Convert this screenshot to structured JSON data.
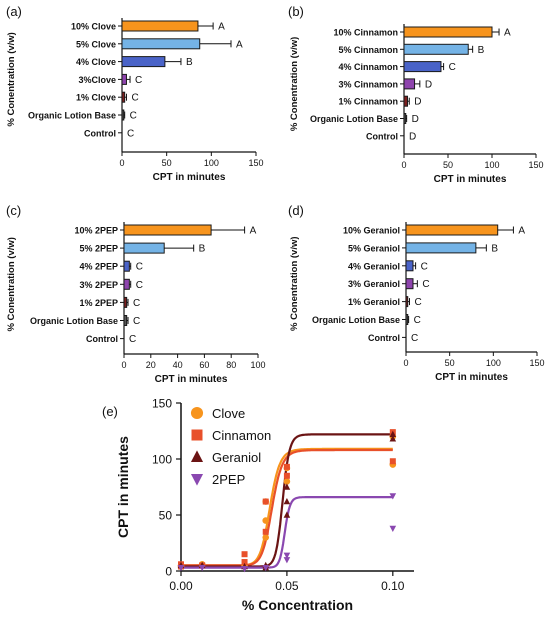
{
  "chart_data": [
    {
      "panel_label": "(a)",
      "type": "bar",
      "orientation": "horizontal",
      "xlabel": "CPT in minutes",
      "ylabel": "% Conentration (v/w)",
      "xlim": [
        0,
        150
      ],
      "xticks": [
        "0",
        "50",
        "100",
        "150"
      ],
      "categories": [
        "10% Clove",
        "5% Clove",
        "4% Clove",
        "3%Clove",
        "1% Clove",
        "Organic Lotion Base",
        "Control"
      ],
      "values": [
        85,
        87,
        48,
        5,
        3,
        2,
        0
      ],
      "errors": [
        17,
        35,
        18,
        4,
        2,
        1,
        0
      ],
      "letters": [
        "A",
        "A",
        "B",
        "C",
        "C",
        "C",
        "C"
      ],
      "colors": [
        "#f7941d",
        "#74b3e6",
        "#4a63c8",
        "#8e44ad",
        "#7a1f1f",
        "#555555",
        "#555555"
      ]
    },
    {
      "panel_label": "(b)",
      "type": "bar",
      "orientation": "horizontal",
      "xlabel": "CPT in minutes",
      "ylabel": "% Conentration (v/w)",
      "xlim": [
        0,
        150
      ],
      "xticks": [
        "0",
        "50",
        "100",
        "150"
      ],
      "categories": [
        "10% Cinnamon",
        "5% Cinnamon",
        "4% Cinnamon",
        "3% Cinnamon",
        "1% Cinnamon",
        "Organic Lotion Base",
        "Control"
      ],
      "values": [
        100,
        73,
        42,
        12,
        4,
        2,
        0
      ],
      "errors": [
        8,
        5,
        3,
        6,
        2,
        1,
        0
      ],
      "letters": [
        "A",
        "B",
        "C",
        "D",
        "D",
        "D",
        "D"
      ],
      "colors": [
        "#f7941d",
        "#74b3e6",
        "#4a63c8",
        "#8e44ad",
        "#7a1f1f",
        "#555555",
        "#555555"
      ]
    },
    {
      "panel_label": "(c)",
      "type": "bar",
      "orientation": "horizontal",
      "xlabel": "CPT in minutes",
      "ylabel": "% Conentration (v/w)",
      "xlim": [
        0,
        100
      ],
      "xticks": [
        "0",
        "20",
        "40",
        "60",
        "80",
        "100"
      ],
      "categories": [
        "10% 2PEP",
        "5% 2PEP",
        "4% 2PEP",
        "3% 2PEP",
        "1% 2PEP",
        "Organic Lotion Base",
        "Control"
      ],
      "values": [
        65,
        30,
        4,
        4,
        2,
        2,
        0
      ],
      "errors": [
        25,
        22,
        1,
        1,
        1,
        1,
        0
      ],
      "letters": [
        "A",
        "B",
        "C",
        "C",
        "C",
        "C",
        "C"
      ],
      "colors": [
        "#f7941d",
        "#74b3e6",
        "#4a63c8",
        "#8e44ad",
        "#7a1f1f",
        "#555555",
        "#555555"
      ]
    },
    {
      "panel_label": "(d)",
      "type": "bar",
      "orientation": "horizontal",
      "xlabel": "CPT in minutes",
      "ylabel": "% Conentration (v/w)",
      "xlim": [
        0,
        150
      ],
      "xticks": [
        "0",
        "50",
        "100",
        "150"
      ],
      "categories": [
        "10% Geraniol",
        "5% Geraniol",
        "4% Geraniol",
        "3% Geraniol",
        "1% Geraniol",
        "Organic Lotion Base",
        "Control"
      ],
      "values": [
        105,
        80,
        8,
        8,
        2,
        2,
        0
      ],
      "errors": [
        18,
        12,
        3,
        5,
        2,
        1,
        0
      ],
      "letters": [
        "A",
        "B",
        "C",
        "C",
        "C",
        "C",
        "C"
      ],
      "colors": [
        "#f7941d",
        "#74b3e6",
        "#4a63c8",
        "#8e44ad",
        "#7a1f1f",
        "#555555",
        "#555555"
      ]
    },
    {
      "panel_label": "(e)",
      "type": "scatter",
      "xlabel": "% Concentration",
      "ylabel": "CPT in minutes",
      "xlim": [
        0,
        0.11
      ],
      "ylim": [
        0,
        150
      ],
      "xticks": [
        "0.00",
        "0.05",
        "0.10"
      ],
      "yticks": [
        "0",
        "50",
        "100",
        "150"
      ],
      "legend_position": "top-left",
      "series": [
        {
          "name": "Clove",
          "color": "#f7941d",
          "marker": "circle",
          "points": [
            [
              0,
              5
            ],
            [
              0,
              4
            ],
            [
              0.01,
              6
            ],
            [
              0.03,
              5
            ],
            [
              0.04,
              30
            ],
            [
              0.04,
              45
            ],
            [
              0.04,
              62
            ],
            [
              0.05,
              80
            ],
            [
              0.05,
              92
            ],
            [
              0.1,
              120
            ],
            [
              0.1,
              95
            ]
          ],
          "fit": {
            "bottom": 5,
            "top": 109,
            "ec50": 0.042,
            "hill": 18
          }
        },
        {
          "name": "Cinnamon",
          "color": "#e8502a",
          "marker": "square",
          "points": [
            [
              0,
              6
            ],
            [
              0,
              4
            ],
            [
              0.01,
              5
            ],
            [
              0.03,
              8
            ],
            [
              0.03,
              15
            ],
            [
              0.04,
              35
            ],
            [
              0.04,
              62
            ],
            [
              0.05,
              85
            ],
            [
              0.05,
              93
            ],
            [
              0.1,
              124
            ],
            [
              0.1,
              98
            ]
          ],
          "fit": {
            "bottom": 5,
            "top": 108,
            "ec50": 0.043,
            "hill": 18
          }
        },
        {
          "name": "Geraniol",
          "color": "#6b1414",
          "marker": "triangle-up",
          "points": [
            [
              0,
              5
            ],
            [
              0.01,
              5
            ],
            [
              0.03,
              4
            ],
            [
              0.04,
              5
            ],
            [
              0.04,
              3
            ],
            [
              0.05,
              50
            ],
            [
              0.05,
              62
            ],
            [
              0.05,
              75
            ],
            [
              0.1,
              118
            ],
            [
              0.1,
              122
            ]
          ],
          "fit": {
            "bottom": 4,
            "top": 122,
            "ec50": 0.048,
            "hill": 30
          }
        },
        {
          "name": "2PEP",
          "color": "#8a48b0",
          "marker": "triangle-down",
          "points": [
            [
              0,
              3
            ],
            [
              0.01,
              3
            ],
            [
              0.03,
              2
            ],
            [
              0.04,
              3
            ],
            [
              0.05,
              10
            ],
            [
              0.05,
              14
            ],
            [
              0.1,
              67
            ],
            [
              0.1,
              38
            ]
          ],
          "fit": {
            "bottom": 3,
            "top": 66,
            "ec50": 0.049,
            "hill": 40
          }
        }
      ]
    }
  ]
}
